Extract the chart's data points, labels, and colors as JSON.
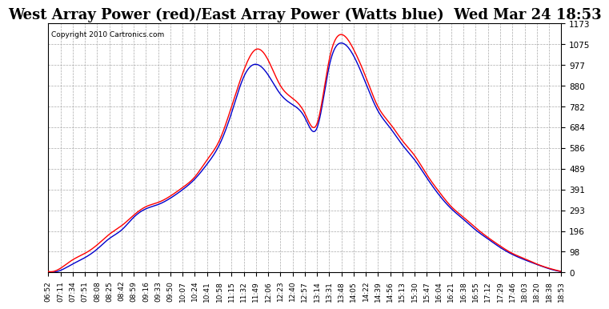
{
  "title": "West Array Power (red)/East Array Power (Watts blue)  Wed Mar 24 18:53",
  "copyright": "Copyright 2010 Cartronics.com",
  "yticks": [
    0.0,
    97.7,
    195.5,
    293.2,
    390.9,
    488.6,
    586.4,
    684.1,
    781.8,
    879.5,
    977.3,
    1075.0,
    1172.7
  ],
  "ymax": 1172.7,
  "ymin": 0.0,
  "background_color": "#ffffff",
  "grid_color": "#aaaaaa",
  "red_color": "#ff0000",
  "blue_color": "#0000cc",
  "title_fontsize": 13,
  "xtick_labels": [
    "06:52",
    "07:11",
    "07:34",
    "07:51",
    "08:08",
    "08:25",
    "08:42",
    "08:59",
    "09:16",
    "09:33",
    "09:50",
    "10:07",
    "10:24",
    "10:41",
    "10:58",
    "11:15",
    "11:32",
    "11:49",
    "12:06",
    "12:23",
    "12:40",
    "12:57",
    "13:14",
    "13:31",
    "13:48",
    "14:05",
    "14:22",
    "14:39",
    "14:56",
    "15:13",
    "15:30",
    "15:47",
    "16:04",
    "16:21",
    "16:38",
    "16:55",
    "17:12",
    "17:29",
    "17:46",
    "18:03",
    "18:20",
    "18:38",
    "18:53"
  ]
}
